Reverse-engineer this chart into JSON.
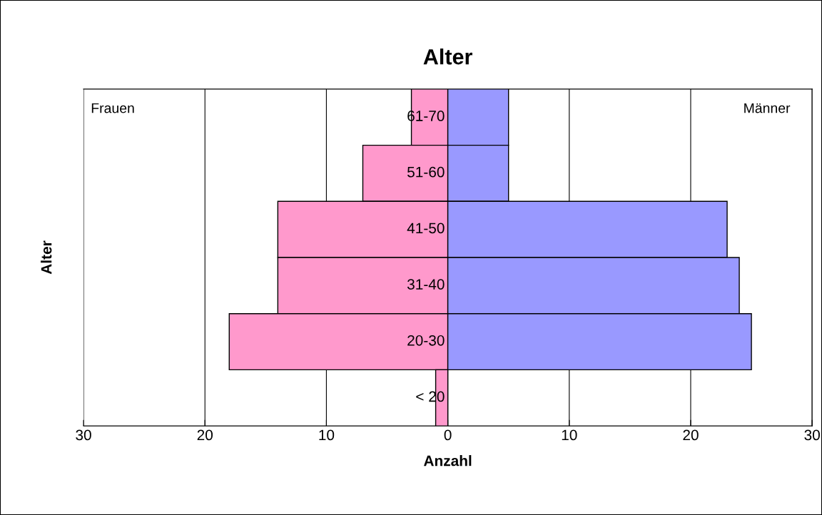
{
  "chart_data": {
    "type": "bar",
    "orientation": "horizontal",
    "stacked": true,
    "title": "Alter",
    "xlabel": "Anzahl",
    "ylabel": "Alter",
    "categories": [
      "61-70",
      "51-60",
      "41-50",
      "31-40",
      "20-30",
      "< 20"
    ],
    "series": [
      {
        "color": "#ff99cc",
        "values": [
          -3,
          -7,
          -14,
          -14,
          -18,
          -1
        ]
      },
      {
        "color": "#9999ff",
        "values": [
          5,
          5,
          23,
          24,
          25,
          0
        ]
      }
    ],
    "annotations": [
      "Frauen",
      "Männer"
    ],
    "xlim": [
      -30,
      30
    ],
    "xticks": [
      {
        "value": -30,
        "label": "30"
      },
      {
        "value": -20,
        "label": "20"
      },
      {
        "value": -10,
        "label": "10"
      },
      0,
      10,
      20,
      30
    ],
    "grid": "x"
  }
}
